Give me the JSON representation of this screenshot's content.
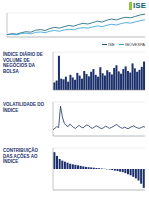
{
  "logo": "ISE",
  "chart_data": [
    {
      "type": "line",
      "ylim": [
        90,
        190
      ],
      "yticks": [
        100,
        125,
        150,
        175
      ],
      "grid": true,
      "tick_labels": false,
      "legend": "lower right",
      "series": [
        {
          "name": "ISE",
          "color": "#0f5e74",
          "values": [
            100,
            104,
            102,
            108,
            112,
            110,
            118,
            121,
            117,
            125,
            130,
            127,
            133,
            138,
            135,
            142,
            147,
            144,
            150,
            156,
            152,
            160,
            165,
            161,
            168,
            172,
            170,
            176,
            182,
            185
          ]
        },
        {
          "name": "IBOVESPA",
          "color": "#2e9ad0",
          "values": [
            100,
            101,
            99,
            104,
            106,
            103,
            109,
            111,
            108,
            114,
            117,
            114,
            119,
            122,
            120,
            126,
            129,
            127,
            132,
            136,
            133,
            139,
            143,
            140,
            146,
            150,
            148,
            153,
            158,
            162
          ]
        }
      ]
    },
    {
      "type": "bar",
      "title": "ÍNDICE DIÁRIO DE VOLUME DE NEGÓCIOS DA BOLSA",
      "color": "#1b2f6b",
      "ylim": [
        0,
        100
      ],
      "yticks": [
        0,
        50,
        100
      ],
      "grid": true,
      "tick_labels": false,
      "values": [
        20,
        25,
        90,
        30,
        28,
        35,
        22,
        40,
        33,
        27,
        45,
        38,
        30,
        50,
        42,
        36,
        48,
        55,
        40,
        35,
        60,
        44,
        38,
        52,
        47,
        41,
        58,
        65,
        49,
        43,
        55,
        62,
        50,
        46,
        70,
        57,
        48,
        53,
        61,
        75
      ]
    },
    {
      "type": "line",
      "title": "VOLATILIDADE DO ÍNDICE",
      "ylim": [
        0,
        80
      ],
      "yticks": [
        0,
        40,
        80
      ],
      "grid": true,
      "tick_labels": false,
      "series": [
        {
          "name": "VOLATILIDADE",
          "color": "#1b2f6b",
          "values": [
            15,
            18,
            22,
            20,
            70,
            45,
            30,
            25,
            22,
            28,
            24,
            20,
            18,
            22,
            25,
            21,
            19,
            23,
            26,
            24,
            20,
            18,
            21,
            24,
            22,
            19,
            17,
            20,
            23,
            21,
            18,
            20,
            22,
            25,
            27,
            23,
            20,
            18,
            21,
            19,
            17,
            20,
            22,
            24,
            21,
            19,
            18,
            20,
            22,
            21
          ]
        }
      ]
    },
    {
      "type": "bar",
      "title": "CONTRIBUIÇÃO DAS AÇÕES AO ÍNDICE",
      "color": "#1b2f6b",
      "ylim": [
        -4,
        4
      ],
      "yticks": [
        -4,
        -2,
        0,
        2,
        4
      ],
      "grid": true,
      "tick_labels": false,
      "values": [
        3.2,
        2.5,
        1.9,
        1.6,
        1.4,
        1.2,
        1.0,
        0.9,
        0.8,
        0.7,
        0.6,
        0.5,
        0.4,
        0.35,
        0.3,
        0.25,
        0.2,
        0.15,
        0.1,
        0.05,
        -0.05,
        -0.1,
        -0.2,
        -0.3,
        -0.4,
        -0.5,
        -0.6,
        -0.8,
        -1.0,
        -1.2,
        -1.5,
        -1.8,
        -2.2,
        -2.8,
        -3.6
      ]
    }
  ]
}
